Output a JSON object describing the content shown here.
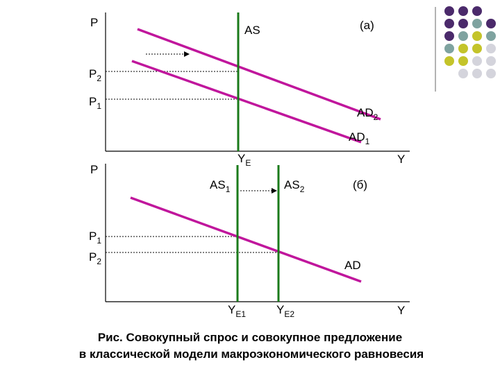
{
  "panel_a": {
    "y_axis": "P",
    "x_axis": "Y",
    "tag": "(а)",
    "supply": "AS",
    "price_1": {
      "main": "P",
      "sub": "1"
    },
    "price_2": {
      "main": "P",
      "sub": "2"
    },
    "demand_1": {
      "main": "AD",
      "sub": "1"
    },
    "demand_2": {
      "main": "AD",
      "sub": "2"
    },
    "output": {
      "main": "Y",
      "sub": "E"
    }
  },
  "panel_b": {
    "y_axis": "P",
    "x_axis": "Y",
    "tag": "(б)",
    "demand": "AD",
    "supply_1": {
      "main": "AS",
      "sub": "1"
    },
    "supply_2": {
      "main": "AS",
      "sub": "2"
    },
    "price_1": {
      "main": "P",
      "sub": "1"
    },
    "price_2": {
      "main": "P",
      "sub": "2"
    },
    "output_1": {
      "main": "Y",
      "sub": "E1"
    },
    "output_2": {
      "main": "Y",
      "sub": "E2"
    }
  },
  "caption": [
    "Рис. Совокупный спрос и совокупное предложение",
    "в классической модели макроэкономического равновесия"
  ]
}
